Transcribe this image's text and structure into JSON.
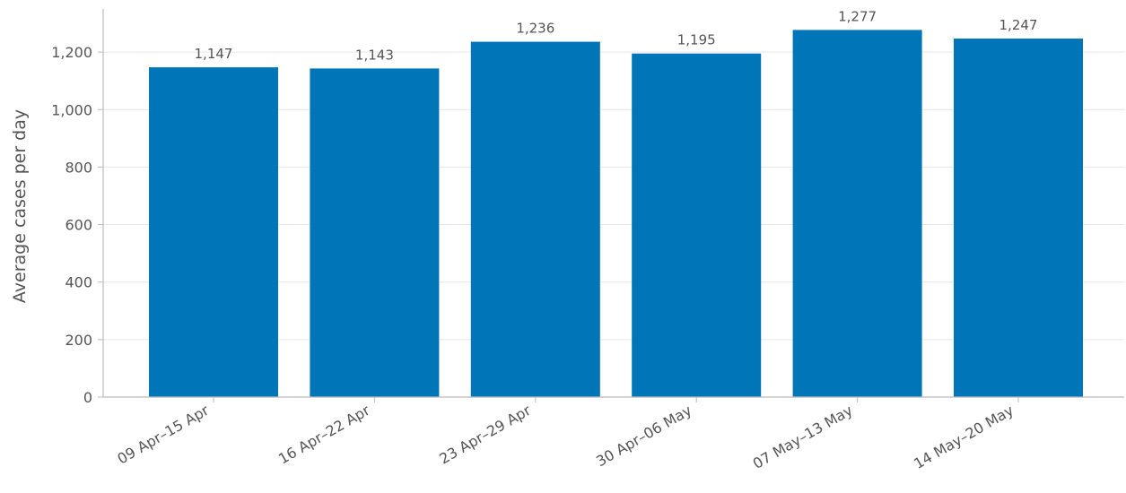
{
  "chart_data": {
    "type": "bar",
    "title": "",
    "xlabel": "",
    "ylabel": "Average cases per day",
    "categories": [
      "09 Apr–15 Apr",
      "16 Apr–22 Apr",
      "23 Apr–29 Apr",
      "30 Apr–06 May",
      "07 May–13 May",
      "14 May–20 May"
    ],
    "values": [
      1147,
      1143,
      1236,
      1195,
      1277,
      1247
    ],
    "data_labels": [
      "1,147",
      "1,143",
      "1,236",
      "1,195",
      "1,277",
      "1,247"
    ],
    "ylim": [
      0,
      1350
    ],
    "yticks": [
      0,
      200,
      400,
      600,
      800,
      1000,
      1200
    ],
    "ytick_labels": [
      "0",
      "200",
      "400",
      "600",
      "800",
      "1,000",
      "1,200"
    ],
    "grid": "horizontal",
    "legend": "none",
    "bar_color": "#0075b8",
    "gridline_color": "#e6e6e6",
    "axis_color": "#bbbbbb",
    "text_color": "#555555"
  }
}
